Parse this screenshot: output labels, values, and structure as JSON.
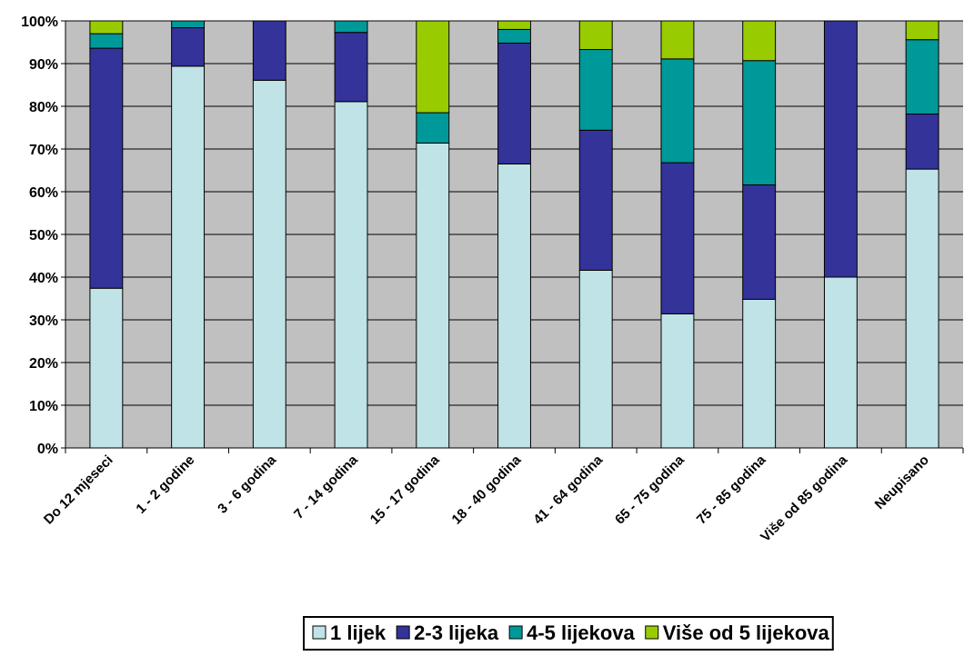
{
  "chart_data": {
    "type": "stacked_bar",
    "categories": [
      "Do 12 mjeseci",
      "1 - 2 godine",
      "3 - 6 godina",
      "7 - 14 godina",
      "15 - 17 godina",
      "18 - 40 godina",
      "41 - 64 godina",
      "65 - 75 godina",
      "75 - 85 godina",
      "Više od 85 godina",
      "Neupisano"
    ],
    "series": [
      {
        "name": "1 lijek",
        "color": "#bfe3e6",
        "values": [
          37.4,
          89.4,
          86.1,
          81.1,
          71.4,
          66.5,
          41.6,
          31.4,
          34.8,
          40.0,
          65.3
        ]
      },
      {
        "name": "2-3 lijeka",
        "color": "#333399",
        "values": [
          56.2,
          9.0,
          13.9,
          16.2,
          0,
          28.3,
          32.8,
          35.4,
          26.8,
          60.0,
          12.9
        ]
      },
      {
        "name": "4-5 lijekova",
        "color": "#009999",
        "values": [
          3.4,
          1.6,
          0,
          2.7,
          7.1,
          3.2,
          18.9,
          24.3,
          29.1,
          0,
          17.4
        ]
      },
      {
        "name": "Više od 5 lijekova",
        "color": "#99cc00",
        "values": [
          3.0,
          0,
          0,
          0,
          21.5,
          2.0,
          6.7,
          8.9,
          9.3,
          0,
          4.4
        ]
      }
    ],
    "ylim": [
      0,
      100
    ],
    "yticks": [
      {
        "value": 0,
        "label": "0%"
      },
      {
        "value": 10,
        "label": "10%"
      },
      {
        "value": 20,
        "label": "20%"
      },
      {
        "value": 30,
        "label": "30%"
      },
      {
        "value": 40,
        "label": "40%"
      },
      {
        "value": 50,
        "label": "50%"
      },
      {
        "value": 60,
        "label": "60%"
      },
      {
        "value": 70,
        "label": "70%"
      },
      {
        "value": 80,
        "label": "80%"
      },
      {
        "value": 90,
        "label": "90%"
      },
      {
        "value": 100,
        "label": "100%"
      }
    ],
    "grid": true,
    "legend": "bottom"
  }
}
